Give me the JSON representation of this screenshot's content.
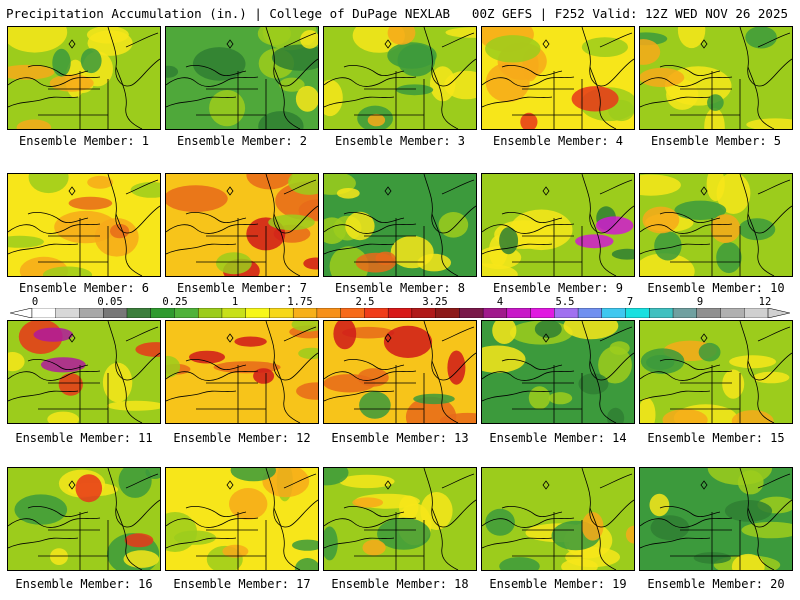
{
  "header": {
    "left_title": "Precipitation Accumulation (in.) | College of DuPage NEXLAB",
    "right_title": "00Z GEFS | F252 Valid: 12Z WED NOV 26 2025"
  },
  "caption_prefix": "Ensemble Member: ",
  "members": [
    {
      "label": "Ensemble Member: 1",
      "base": "#9ccc1c",
      "blobs": [
        [
          "#f7e61a",
          0.62
        ],
        [
          "#f7a91a",
          0.35
        ],
        [
          "#3c9a3c",
          0.25
        ]
      ]
    },
    {
      "label": "Ensemble Member: 2",
      "base": "#4fa83a",
      "blobs": [
        [
          "#9ccc1c",
          0.55
        ],
        [
          "#2f7f32",
          0.4
        ],
        [
          "#f7e61a",
          0.2
        ]
      ]
    },
    {
      "label": "Ensemble Member: 3",
      "base": "#9ccc1c",
      "blobs": [
        [
          "#f7e61a",
          0.6
        ],
        [
          "#3c9a3c",
          0.4
        ],
        [
          "#f7a91a",
          0.25
        ]
      ]
    },
    {
      "label": "Ensemble Member: 4",
      "base": "#f7e61a",
      "blobs": [
        [
          "#f7a91a",
          0.45
        ],
        [
          "#9ccc1c",
          0.45
        ],
        [
          "#e8371a",
          0.12
        ]
      ]
    },
    {
      "label": "Ensemble Member: 5",
      "base": "#9ccc1c",
      "blobs": [
        [
          "#f7e61a",
          0.55
        ],
        [
          "#3c9a3c",
          0.35
        ],
        [
          "#f7a91a",
          0.25
        ]
      ]
    },
    {
      "label": "Ensemble Member: 6",
      "base": "#f7e61a",
      "blobs": [
        [
          "#f7a91a",
          0.45
        ],
        [
          "#9ccc1c",
          0.4
        ],
        [
          "#e86a1a",
          0.2
        ]
      ]
    },
    {
      "label": "Ensemble Member: 7",
      "base": "#f7c41a",
      "blobs": [
        [
          "#e86a1a",
          0.5
        ],
        [
          "#d01a1a",
          0.3
        ],
        [
          "#9ccc1c",
          0.3
        ]
      ]
    },
    {
      "label": "Ensemble Member: 8",
      "base": "#3c9a3c",
      "blobs": [
        [
          "#9ccc1c",
          0.5
        ],
        [
          "#f7e61a",
          0.4
        ],
        [
          "#e86a1a",
          0.2
        ]
      ]
    },
    {
      "label": "Ensemble Member: 9",
      "base": "#9ccc1c",
      "blobs": [
        [
          "#f7e61a",
          0.5
        ],
        [
          "#2f7f32",
          0.35
        ],
        [
          "#d01ad0",
          0.12
        ]
      ]
    },
    {
      "label": "Ensemble Member: 10",
      "base": "#9ccc1c",
      "blobs": [
        [
          "#f7e61a",
          0.5
        ],
        [
          "#3c9a3c",
          0.4
        ],
        [
          "#f7a91a",
          0.2
        ]
      ]
    },
    {
      "label": "Ensemble Member: 11",
      "base": "#9ccc1c",
      "blobs": [
        [
          "#f7e61a",
          0.45
        ],
        [
          "#e8371a",
          0.3
        ],
        [
          "#b01a9c",
          0.15
        ]
      ]
    },
    {
      "label": "Ensemble Member: 12",
      "base": "#f7c41a",
      "blobs": [
        [
          "#e86a1a",
          0.45
        ],
        [
          "#d01a1a",
          0.3
        ],
        [
          "#9ccc1c",
          0.3
        ]
      ]
    },
    {
      "label": "Ensemble Member: 13",
      "base": "#f7c41a",
      "blobs": [
        [
          "#e86a1a",
          0.5
        ],
        [
          "#d01a1a",
          0.3
        ],
        [
          "#3c9a3c",
          0.25
        ]
      ]
    },
    {
      "label": "Ensemble Member: 14",
      "base": "#3c9a3c",
      "blobs": [
        [
          "#9ccc1c",
          0.5
        ],
        [
          "#f7e61a",
          0.35
        ],
        [
          "#2f7f32",
          0.3
        ]
      ]
    },
    {
      "label": "Ensemble Member: 15",
      "base": "#9ccc1c",
      "blobs": [
        [
          "#f7e61a",
          0.5
        ],
        [
          "#f7a91a",
          0.3
        ],
        [
          "#3c9a3c",
          0.3
        ]
      ]
    },
    {
      "label": "Ensemble Member: 16",
      "base": "#9ccc1c",
      "blobs": [
        [
          "#3c9a3c",
          0.45
        ],
        [
          "#f7e61a",
          0.4
        ],
        [
          "#e8371a",
          0.15
        ]
      ]
    },
    {
      "label": "Ensemble Member: 17",
      "base": "#f7e61a",
      "blobs": [
        [
          "#9ccc1c",
          0.45
        ],
        [
          "#f7a91a",
          0.3
        ],
        [
          "#3c9a3c",
          0.3
        ]
      ]
    },
    {
      "label": "Ensemble Member: 18",
      "base": "#9ccc1c",
      "blobs": [
        [
          "#f7e61a",
          0.5
        ],
        [
          "#3c9a3c",
          0.35
        ],
        [
          "#f7a91a",
          0.2
        ]
      ]
    },
    {
      "label": "Ensemble Member: 19",
      "base": "#9ccc1c",
      "blobs": [
        [
          "#f7e61a",
          0.5
        ],
        [
          "#3c9a3c",
          0.35
        ],
        [
          "#f7a91a",
          0.15
        ]
      ]
    },
    {
      "label": "Ensemble Member: 20",
      "base": "#3c9a3c",
      "blobs": [
        [
          "#9ccc1c",
          0.5
        ],
        [
          "#2f7f32",
          0.35
        ],
        [
          "#f7e61a",
          0.2
        ]
      ]
    }
  ],
  "colorbar": {
    "labels": [
      "0",
      "0.05",
      "0.25",
      "1",
      "1.75",
      "2.5",
      "3.25",
      "4",
      "5.5",
      "7",
      "9",
      "12"
    ],
    "colors": [
      "#ffffff",
      "#d8d8d8",
      "#a8a8a8",
      "#787878",
      "#3c7f3c",
      "#2f9a2f",
      "#4fb23a",
      "#9ccc1c",
      "#c8e01a",
      "#f7f71a",
      "#f7d81a",
      "#f7b01a",
      "#f7901a",
      "#f76a1a",
      "#f03c1a",
      "#d81a1a",
      "#b01a1a",
      "#8c1a1a",
      "#7a1a4a",
      "#a01a8c",
      "#c81ac8",
      "#e01ae0",
      "#a070f0",
      "#7090f0",
      "#40c8f0",
      "#1ae0e0",
      "#40c0c0",
      "#70a0a0",
      "#909090",
      "#b0b0b0",
      "#d0d0d0"
    ]
  }
}
